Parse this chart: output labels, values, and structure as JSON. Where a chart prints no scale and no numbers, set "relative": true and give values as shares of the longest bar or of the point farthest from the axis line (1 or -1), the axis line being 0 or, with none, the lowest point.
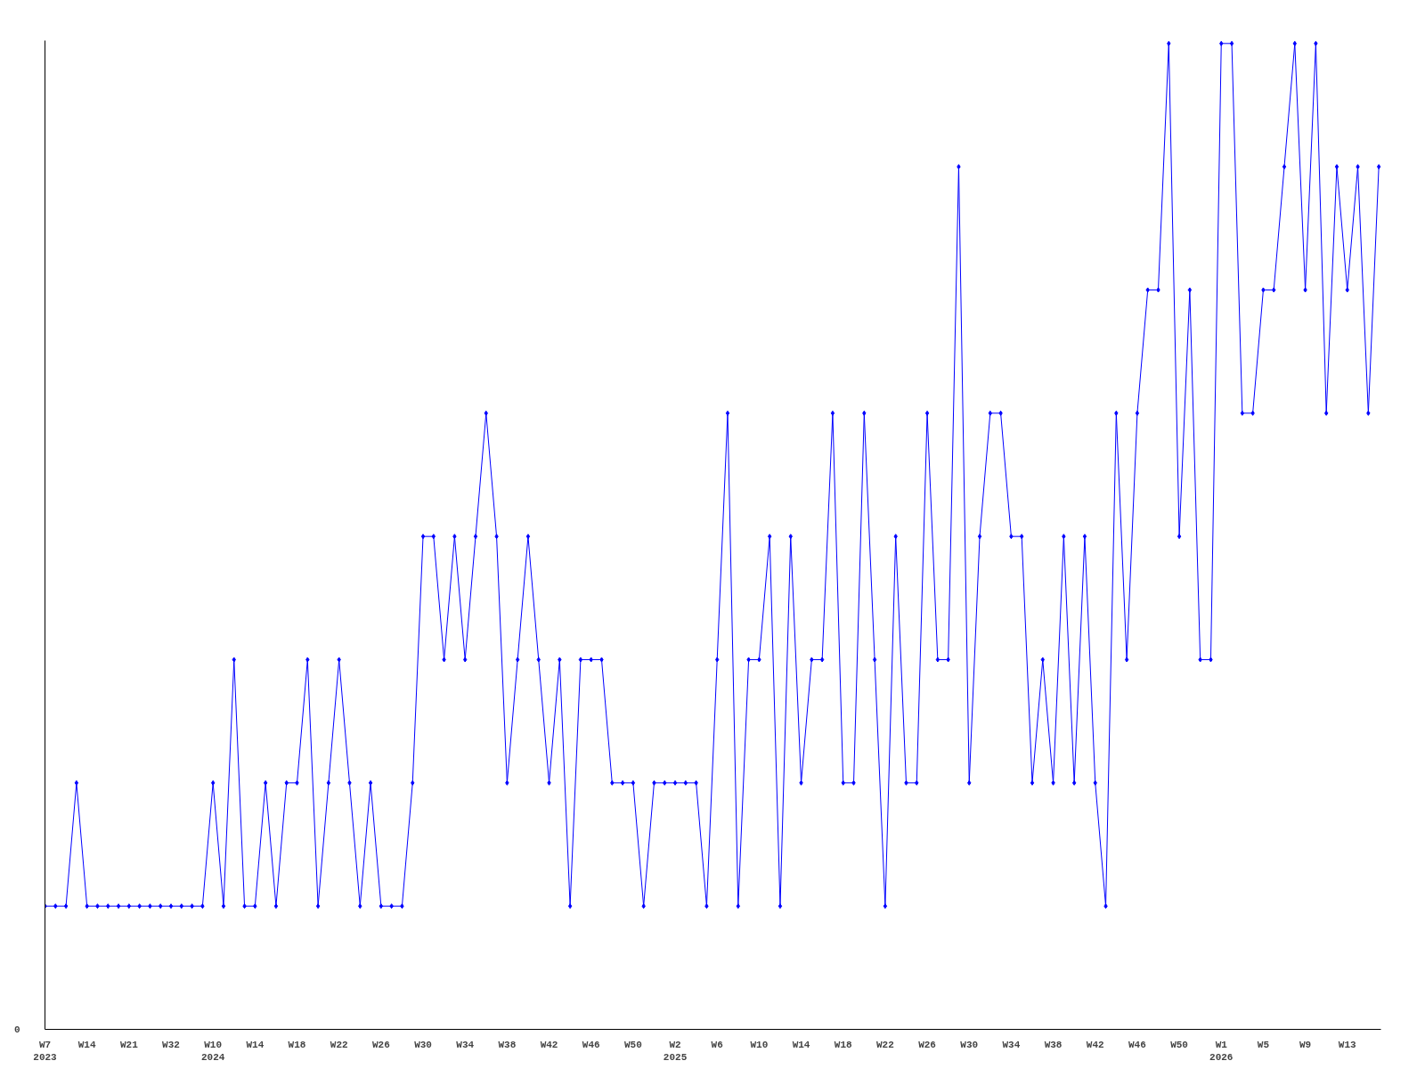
{
  "chart_data": {
    "type": "line",
    "relative": true,
    "marker": "diamond",
    "line_style": "solid",
    "grid": false,
    "annotations": [
      "0"
    ],
    "categories": [
      "W7\n2023",
      null,
      null,
      null,
      "W14",
      null,
      null,
      null,
      "W21",
      null,
      null,
      null,
      "W32",
      null,
      null,
      null,
      "W10\n2024",
      null,
      null,
      null,
      "W14",
      null,
      null,
      null,
      "W18",
      null,
      null,
      null,
      "W22",
      null,
      null,
      null,
      "W26",
      null,
      null,
      null,
      "W30",
      null,
      null,
      null,
      "W34",
      null,
      null,
      null,
      "W38",
      null,
      null,
      null,
      "W42",
      null,
      null,
      null,
      "W46",
      null,
      null,
      null,
      "W50",
      null,
      null,
      null,
      "W2\n2025",
      null,
      null,
      null,
      "W6",
      null,
      null,
      null,
      "W10",
      null,
      null,
      null,
      "W14",
      null,
      null,
      null,
      "W18",
      null,
      null,
      null,
      "W22",
      null,
      null,
      null,
      "W26",
      null,
      null,
      null,
      "W30",
      null,
      null,
      null,
      "W34",
      null,
      null,
      null,
      "W38",
      null,
      null,
      null,
      "W42",
      null,
      null,
      null,
      "W46",
      null,
      null,
      null,
      "W50",
      null,
      null,
      null,
      "W1\n2026",
      null,
      null,
      null,
      "W5",
      null,
      null,
      null,
      "W9",
      null,
      null,
      null,
      "W13",
      null,
      null,
      null
    ],
    "series": [
      {
        "color": "#0000ff",
        "values": [
          0.125,
          0.125,
          0.125,
          0.25,
          0.125,
          0.125,
          0.125,
          0.125,
          0.125,
          0.125,
          0.125,
          0.125,
          0.125,
          0.125,
          0.125,
          0.125,
          0.25,
          0.125,
          0.375,
          0.125,
          0.125,
          0.25,
          0.125,
          0.25,
          0.25,
          0.375,
          0.125,
          0.25,
          0.375,
          0.25,
          0.125,
          0.25,
          0.125,
          0.125,
          0.125,
          0.25,
          0.5,
          0.5,
          0.375,
          0.5,
          0.375,
          0.5,
          0.625,
          0.5,
          0.25,
          0.375,
          0.5,
          0.375,
          0.25,
          0.375,
          0.125,
          0.375,
          0.375,
          0.375,
          0.25,
          0.25,
          0.25,
          0.125,
          0.25,
          0.25,
          0.25,
          0.25,
          0.25,
          0.125,
          0.375,
          0.625,
          0.125,
          0.375,
          0.375,
          0.5,
          0.125,
          0.5,
          0.25,
          0.375,
          0.375,
          0.625,
          0.25,
          0.25,
          0.625,
          0.375,
          0.125,
          0.5,
          0.25,
          0.25,
          0.625,
          0.375,
          0.375,
          0.875,
          0.25,
          0.5,
          0.625,
          0.625,
          0.5,
          0.5,
          0.25,
          0.375,
          0.25,
          0.5,
          0.25,
          0.5,
          0.25,
          0.125,
          0.625,
          0.375,
          0.625,
          0.75,
          0.75,
          1,
          0.5,
          0.75,
          0.375,
          0.375,
          1,
          1,
          0.625,
          0.625,
          0.75,
          0.75,
          0.875,
          1,
          0.75,
          1,
          0.625,
          0.875,
          0.75,
          0.875,
          0.625,
          0.875
        ]
      }
    ]
  }
}
